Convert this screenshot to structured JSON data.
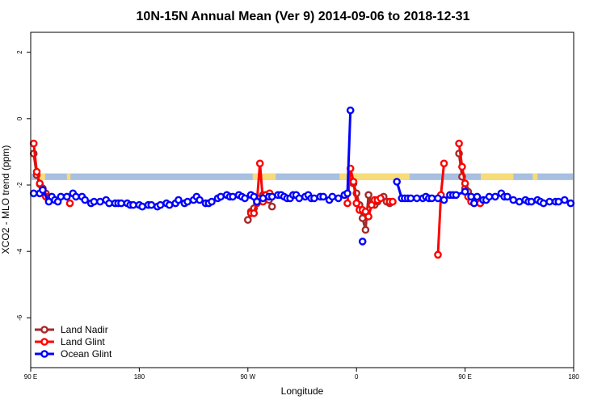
{
  "chart_data": {
    "type": "line",
    "title": "10N-15N Annual Mean (Ver 9)   2014-09-06 to 2018-12-31",
    "xlabel": "Longitude",
    "ylabel": "XCO2 - MLO trend (ppm)",
    "x_ticks": [
      {
        "value": 90,
        "label": "90 E"
      },
      {
        "value": 180,
        "label": "180"
      },
      {
        "value": 270,
        "label": "90 W"
      },
      {
        "value": 360,
        "label": "0"
      },
      {
        "value": 450,
        "label": "90 E"
      },
      {
        "value": 540,
        "label": "180"
      }
    ],
    "y_ticks": [
      {
        "value": 2,
        "label": "2"
      },
      {
        "value": 0,
        "label": "0"
      },
      {
        "value": -2,
        "label": "-2"
      },
      {
        "value": -4,
        "label": "-4"
      },
      {
        "value": -6,
        "label": "-6"
      }
    ],
    "xlim": [
      90,
      540
    ],
    "ylim": [
      -7.5,
      2.6
    ],
    "legend_position": "bottom-left",
    "background_band": {
      "y_range": [
        -1.85,
        -1.65
      ],
      "ocean_color": "#a8bfe0",
      "land_color": "#f7dc7a",
      "land_segments": [
        [
          96,
          102
        ],
        [
          120,
          123
        ],
        [
          274,
          293
        ],
        [
          346,
          404
        ],
        [
          463,
          490
        ],
        [
          506,
          510
        ]
      ]
    },
    "series": [
      {
        "name": "Land Nadir",
        "color": "#a52a2a",
        "segments": [
          [
            [
              92.5,
              -1.05
            ],
            [
              95,
              -1.7
            ],
            [
              97.5,
              -1.97
            ],
            [
              100,
              -2.1
            ],
            [
              102.5,
              -2.25
            ],
            [
              105,
              -2.4
            ]
          ],
          [
            [
              270,
              -3.05
            ],
            [
              272.5,
              -2.8
            ],
            [
              275,
              -2.7
            ],
            [
              277.5,
              -2.55
            ],
            [
              280,
              -2.4
            ],
            [
              282.5,
              -2.3
            ],
            [
              285,
              -2.3
            ],
            [
              287.5,
              -2.45
            ],
            [
              290,
              -2.65
            ]
          ],
          [
            [
              355,
              -1.9
            ],
            [
              357.5,
              -1.95
            ],
            [
              360,
              -2.25
            ],
            [
              362.5,
              -2.6
            ],
            [
              365,
              -3.0
            ],
            [
              367.5,
              -3.35
            ],
            [
              370,
              -2.3
            ],
            [
              372.5,
              -2.55
            ],
            [
              375,
              -2.6
            ],
            [
              377.5,
              -2.5
            ],
            [
              380,
              -2.4
            ],
            [
              382.5,
              -2.35
            ],
            [
              385,
              -2.5
            ],
            [
              387.5,
              -2.55
            ]
          ],
          [
            [
              445,
              -1.05
            ],
            [
              447.5,
              -1.75
            ],
            [
              450,
              -2.1
            ],
            [
              452.5,
              -2.2
            ],
            [
              455,
              -2.35
            ]
          ]
        ]
      },
      {
        "name": "Land Glint",
        "color": "#ff0000",
        "segments": [
          [
            [
              92.5,
              -0.75
            ],
            [
              95,
              -1.6
            ],
            [
              97.5,
              -1.95
            ],
            [
              100,
              -2.2
            ],
            [
              102.5,
              -2.35
            ],
            [
              105,
              -2.4
            ]
          ],
          [
            [
              122.5,
              -2.55
            ]
          ],
          [
            [
              272.5,
              -2.85
            ],
            [
              275,
              -2.85
            ],
            [
              277.5,
              -2.5
            ],
            [
              280,
              -1.35
            ],
            [
              282.5,
              -2.5
            ],
            [
              285,
              -2.3
            ]
          ],
          [
            [
              288,
              -2.25
            ]
          ],
          [
            [
              352.5,
              -2.55
            ],
            [
              355,
              -1.5
            ],
            [
              357.5,
              -1.9
            ],
            [
              360,
              -2.55
            ],
            [
              362.5,
              -2.75
            ],
            [
              365,
              -2.75
            ],
            [
              367.5,
              -2.8
            ],
            [
              370,
              -2.95
            ],
            [
              372.5,
              -2.6
            ],
            [
              375,
              -2.45
            ],
            [
              377.5,
              -2.45
            ],
            [
              380,
              -2.4
            ]
          ],
          [
            [
              387.5,
              -2.5
            ],
            [
              390,
              -2.5
            ]
          ],
          [
            [
              427.5,
              -4.1
            ],
            [
              430,
              -2.3
            ],
            [
              432.5,
              -1.35
            ]
          ],
          [
            [
              445,
              -0.75
            ],
            [
              447.5,
              -1.45
            ],
            [
              450,
              -1.95
            ],
            [
              452.5,
              -2.35
            ],
            [
              455,
              -2.5
            ]
          ],
          [
            [
              462.5,
              -2.55
            ]
          ]
        ]
      },
      {
        "name": "Ocean Glint",
        "color": "#0000ff",
        "segments": [
          [
            [
              92.5,
              -2.25
            ],
            [
              97.5,
              -2.25
            ],
            [
              100,
              -2.15
            ],
            [
              105,
              -2.5
            ],
            [
              107.5,
              -2.35
            ],
            [
              110,
              -2.45
            ],
            [
              112.5,
              -2.5
            ],
            [
              115,
              -2.35
            ],
            [
              120,
              -2.35
            ],
            [
              125,
              -2.25
            ],
            [
              127.5,
              -2.35
            ],
            [
              132.5,
              -2.35
            ],
            [
              135,
              -2.45
            ],
            [
              140,
              -2.55
            ],
            [
              142.5,
              -2.5
            ],
            [
              147.5,
              -2.5
            ],
            [
              152.5,
              -2.45
            ],
            [
              155,
              -2.55
            ],
            [
              160,
              -2.55
            ],
            [
              162.5,
              -2.55
            ],
            [
              165,
              -2.55
            ],
            [
              170,
              -2.55
            ],
            [
              172.5,
              -2.6
            ],
            [
              175,
              -2.6
            ],
            [
              180,
              -2.6
            ],
            [
              182.5,
              -2.65
            ],
            [
              187.5,
              -2.6
            ],
            [
              190,
              -2.6
            ],
            [
              195,
              -2.65
            ],
            [
              197.5,
              -2.6
            ],
            [
              202.5,
              -2.55
            ],
            [
              205,
              -2.6
            ],
            [
              210,
              -2.55
            ],
            [
              212.5,
              -2.45
            ],
            [
              217.5,
              -2.55
            ],
            [
              220,
              -2.5
            ],
            [
              225,
              -2.45
            ],
            [
              227.5,
              -2.35
            ],
            [
              230,
              -2.45
            ],
            [
              235,
              -2.55
            ],
            [
              237.5,
              -2.55
            ],
            [
              240,
              -2.5
            ],
            [
              245,
              -2.4
            ],
            [
              247.5,
              -2.35
            ],
            [
              252.5,
              -2.3
            ],
            [
              255,
              -2.35
            ],
            [
              257.5,
              -2.35
            ],
            [
              262.5,
              -2.3
            ],
            [
              265,
              -2.35
            ],
            [
              267.5,
              -2.4
            ],
            [
              272.5,
              -2.3
            ],
            [
              275,
              -2.35
            ],
            [
              277.5,
              -2.5
            ],
            [
              282.5,
              -2.4
            ],
            [
              287.5,
              -2.35
            ],
            [
              290,
              -2.35
            ],
            [
              295,
              -2.3
            ],
            [
              297.5,
              -2.3
            ],
            [
              300,
              -2.35
            ],
            [
              302.5,
              -2.4
            ],
            [
              305,
              -2.4
            ],
            [
              307.5,
              -2.3
            ],
            [
              310,
              -2.3
            ],
            [
              312.5,
              -2.4
            ],
            [
              317.5,
              -2.35
            ],
            [
              320,
              -2.3
            ],
            [
              322.5,
              -2.4
            ],
            [
              325,
              -2.4
            ],
            [
              330,
              -2.35
            ],
            [
              332.5,
              -2.35
            ],
            [
              337.5,
              -2.45
            ],
            [
              340,
              -2.35
            ],
            [
              345,
              -2.4
            ],
            [
              350,
              -2.3
            ],
            [
              352.5,
              -2.25
            ],
            [
              355,
              0.25
            ]
          ],
          [
            [
              365,
              -3.7
            ]
          ],
          [
            [
              393.5,
              -1.9
            ],
            [
              397.5,
              -2.4
            ],
            [
              400,
              -2.4
            ],
            [
              402.5,
              -2.4
            ],
            [
              405,
              -2.4
            ],
            [
              410,
              -2.4
            ],
            [
              415,
              -2.4
            ],
            [
              417.5,
              -2.35
            ],
            [
              420,
              -2.4
            ],
            [
              422.5,
              -2.4
            ],
            [
              427.5,
              -2.4
            ],
            [
              432.5,
              -2.45
            ],
            [
              437.5,
              -2.3
            ],
            [
              440,
              -2.3
            ],
            [
              442.5,
              -2.3
            ],
            [
              450,
              -2.2
            ],
            [
              455,
              -2.35
            ],
            [
              457.5,
              -2.55
            ],
            [
              460,
              -2.35
            ],
            [
              465,
              -2.45
            ],
            [
              467.5,
              -2.45
            ],
            [
              470,
              -2.35
            ],
            [
              475,
              -2.35
            ],
            [
              480,
              -2.25
            ],
            [
              482.5,
              -2.35
            ],
            [
              485,
              -2.35
            ],
            [
              490,
              -2.45
            ],
            [
              495,
              -2.5
            ],
            [
              500,
              -2.45
            ],
            [
              502.5,
              -2.5
            ],
            [
              505,
              -2.5
            ],
            [
              510,
              -2.45
            ],
            [
              512.5,
              -2.5
            ],
            [
              515,
              -2.55
            ],
            [
              520,
              -2.5
            ],
            [
              525,
              -2.5
            ],
            [
              527.5,
              -2.5
            ],
            [
              532.5,
              -2.45
            ],
            [
              537.5,
              -2.55
            ]
          ]
        ]
      }
    ]
  }
}
